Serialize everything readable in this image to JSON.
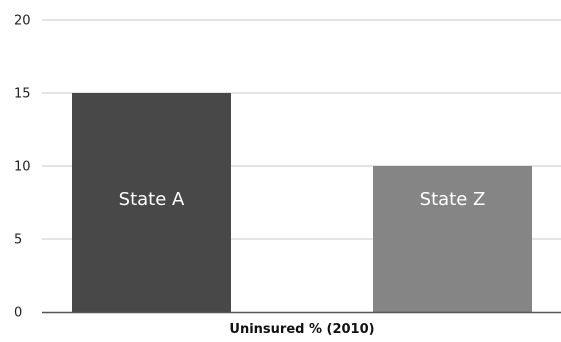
{
  "chart_data": {
    "type": "bar",
    "categories": [
      "State A",
      "State Z"
    ],
    "values": [
      15,
      10
    ],
    "colors": [
      "#484848",
      "#858585"
    ],
    "title": "",
    "xlabel": "Uninsured % (2010)",
    "ylabel": "",
    "ylim": [
      0,
      20
    ],
    "yticks": [
      0,
      5,
      10,
      15,
      20
    ],
    "grid": true,
    "legend": "none",
    "label_position": "inside-bar"
  }
}
